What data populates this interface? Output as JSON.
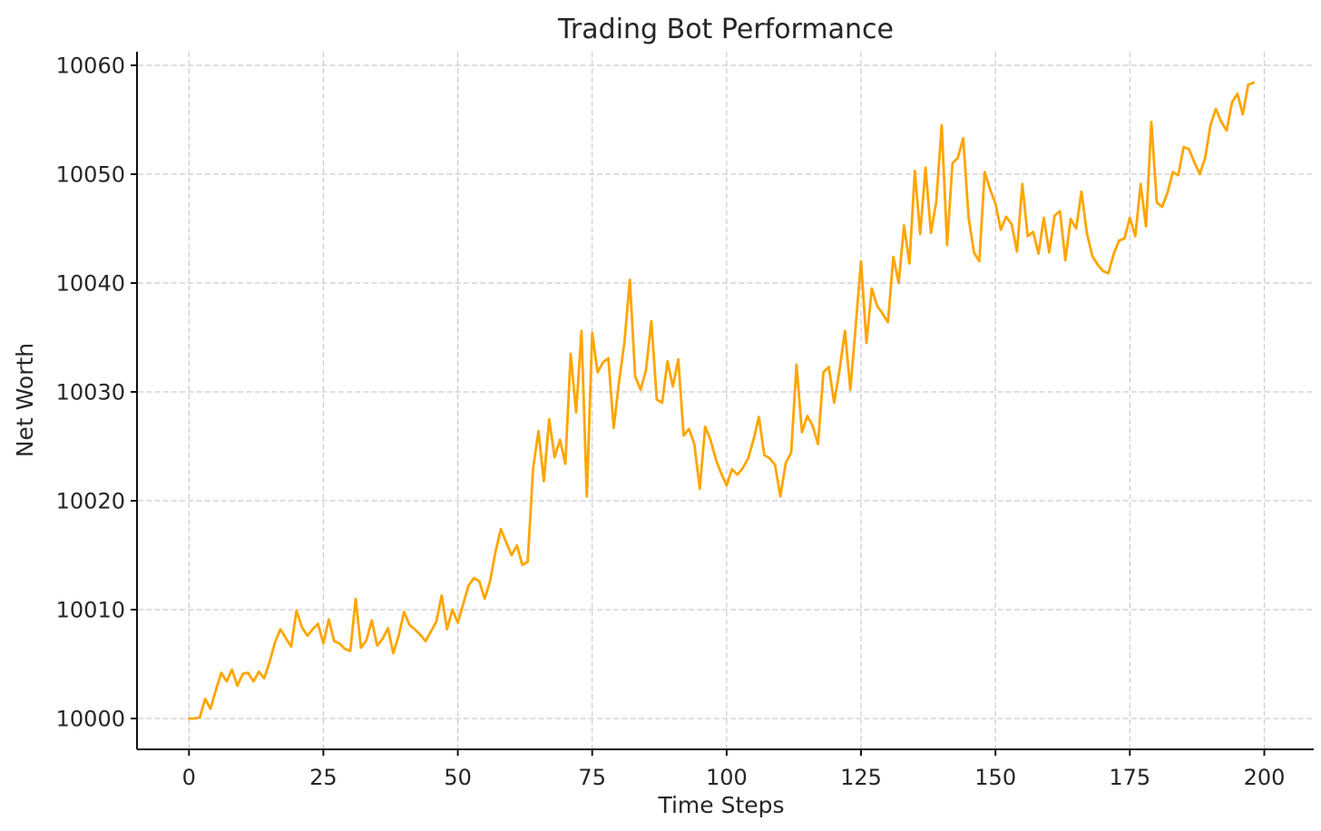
{
  "chart_data": {
    "type": "line",
    "title": "Trading Bot Performance",
    "xlabel": "Time Steps",
    "ylabel": "Net Worth",
    "x_ticks": [
      0,
      25,
      50,
      75,
      100,
      125,
      150,
      175,
      200
    ],
    "y_ticks": [
      10000,
      10010,
      10020,
      10030,
      10040,
      10050,
      10060
    ],
    "xlim": [
      -9.5,
      209.2
    ],
    "ylim": [
      9997.25,
      10061.25
    ],
    "grid": true,
    "grid_style": "dashed",
    "grid_color": "#cccccc",
    "line_color": "#FFA500",
    "text_color": "#262626",
    "spine_color": "#111111",
    "legend_position": "none",
    "series": [
      {
        "name": "Net Worth",
        "x_start": 0,
        "x_step": 1,
        "values": [
          10000.0,
          10000.0,
          10000.1,
          10001.8,
          10000.9,
          10002.6,
          10004.2,
          10003.4,
          10004.5,
          10003.0,
          10004.1,
          10004.2,
          10003.4,
          10004.3,
          10003.7,
          10005.2,
          10007.0,
          10008.2,
          10007.4,
          10006.6,
          10009.9,
          10008.4,
          10007.6,
          10008.2,
          10008.7,
          10006.9,
          10009.1,
          10007.1,
          10006.9,
          10006.4,
          10006.2,
          10011.0,
          10006.5,
          10007.2,
          10009.0,
          10006.7,
          10007.3,
          10008.3,
          10006.0,
          10007.6,
          10009.8,
          10008.6,
          10008.2,
          10007.7,
          10007.1,
          10008.0,
          10008.9,
          10011.3,
          10008.2,
          10010.0,
          10008.8,
          10010.5,
          10012.2,
          10012.9,
          10012.6,
          10011.0,
          10012.6,
          10015.3,
          10017.4,
          10016.2,
          10015.0,
          10015.9,
          10014.1,
          10014.4,
          10023.0,
          10026.4,
          10021.8,
          10027.5,
          10024.0,
          10025.6,
          10023.4,
          10033.5,
          10028.1,
          10035.6,
          10020.4,
          10035.4,
          10031.8,
          10032.7,
          10033.1,
          10026.7,
          10031.0,
          10034.6,
          10040.3,
          10031.4,
          10030.2,
          10032.0,
          10036.5,
          10029.3,
          10029.0,
          10032.8,
          10030.5,
          10033.0,
          10026.0,
          10026.6,
          10025.2,
          10021.1,
          10026.8,
          10025.6,
          10023.8,
          10022.5,
          10021.4,
          10022.9,
          10022.4,
          10023.0,
          10023.9,
          10025.6,
          10027.7,
          10024.2,
          10023.9,
          10023.3,
          10020.4,
          10023.5,
          10024.4,
          10032.5,
          10026.3,
          10027.8,
          10026.9,
          10025.2,
          10031.8,
          10032.3,
          10029.0,
          10032.0,
          10035.6,
          10030.2,
          10036.0,
          10042.0,
          10034.5,
          10039.5,
          10037.9,
          10037.2,
          10036.4,
          10042.4,
          10040.0,
          10045.3,
          10041.8,
          10050.3,
          10044.5,
          10050.6,
          10044.6,
          10047.5,
          10054.5,
          10043.5,
          10051.0,
          10051.5,
          10053.3,
          10046.0,
          10042.8,
          10042.0,
          10050.2,
          10048.6,
          10047.3,
          10044.9,
          10046.1,
          10045.4,
          10042.9,
          10049.1,
          10044.3,
          10044.7,
          10042.7,
          10046.0,
          10042.8,
          10046.2,
          10046.6,
          10042.1,
          10045.9,
          10045.0,
          10048.4,
          10044.6,
          10042.5,
          10041.7,
          10041.1,
          10040.9,
          10042.7,
          10043.9,
          10044.1,
          10046.0,
          10044.3,
          10049.1,
          10045.2,
          10054.8,
          10047.4,
          10047.0,
          10048.3,
          10050.2,
          10049.9,
          10052.5,
          10052.3,
          10051.1,
          10050.0,
          10051.5,
          10054.5,
          10056.0,
          10054.8,
          10054.0,
          10056.6,
          10057.4,
          10055.5,
          10058.2,
          10058.4
        ]
      }
    ]
  }
}
